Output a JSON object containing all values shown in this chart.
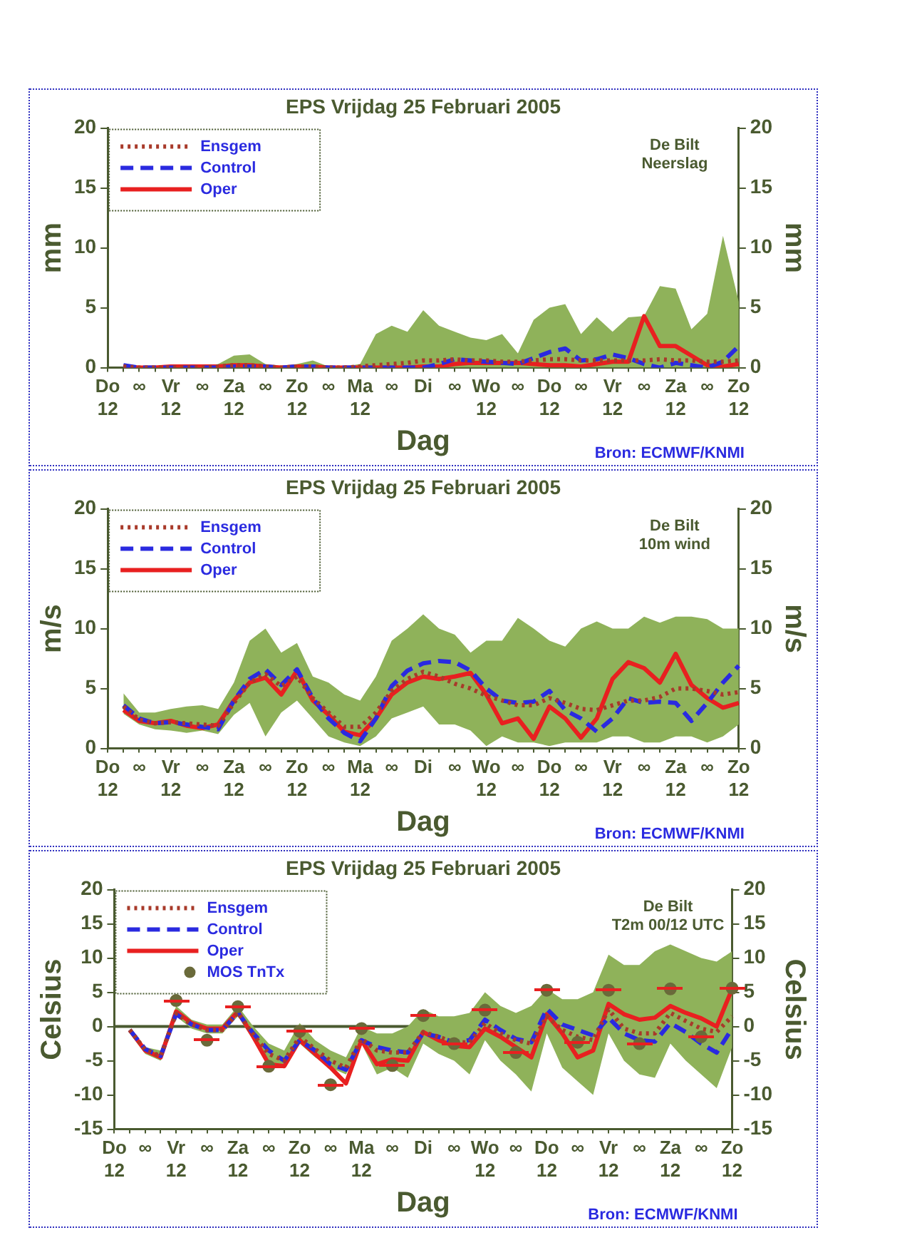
{
  "chart_data": [
    {
      "type": "line",
      "title": "EPS Vrijdag 25 Februari 2005",
      "xlabel": "Dag",
      "ylabel": "mm",
      "y2label": "mm",
      "legend": "top left",
      "grid": false,
      "annotations": [
        "De Bilt",
        "Neerslag",
        "Bron: ECMWF/KNMI"
      ],
      "categories": [
        "Do\n12",
        null,
        "∞",
        null,
        "Vr\n12",
        null,
        "∞",
        null,
        "Za\n12",
        null,
        "∞",
        null,
        "Zo\n12",
        null,
        "∞",
        null,
        "Ma\n12",
        null,
        "∞",
        null,
        "Di",
        null,
        "∞",
        null,
        "Wo\n12",
        null,
        "∞",
        null,
        "Do\n12",
        null,
        "∞",
        null,
        "Vr\n12",
        null,
        "∞",
        null,
        "Za\n12",
        null,
        "∞",
        null,
        "Zo\n12"
      ],
      "ylim": [
        0,
        20
      ],
      "yticks": [
        0,
        5,
        10,
        15,
        20
      ],
      "y2lim": [
        0,
        20
      ],
      "y2ticks": [
        0,
        5,
        10,
        15,
        20
      ],
      "series": [
        {
          "name": "Ensgem",
          "color": "#a83a2a",
          "line_style": "dotted",
          "values": [
            null,
            0.1,
            0,
            0,
            0,
            0,
            0,
            0.1,
            0.2,
            0.2,
            0.1,
            0,
            0.1,
            0.1,
            0,
            0,
            0.1,
            0.2,
            0.3,
            0.4,
            0.6,
            0.6,
            0.7,
            0.6,
            0.6,
            0.5,
            0.5,
            0.6,
            0.7,
            0.7,
            0.6,
            0.6,
            0.6,
            0.6,
            0.6,
            0.7,
            0.6,
            0.6,
            0.5,
            0.5,
            0.6
          ],
          "lower": [
            null,
            0,
            0,
            0,
            0,
            0,
            0,
            0,
            0,
            0,
            0,
            0,
            0,
            0,
            0,
            0,
            0,
            0,
            0,
            0,
            0,
            0,
            0,
            0,
            0,
            0,
            0,
            0,
            0,
            0,
            0,
            0,
            0,
            0,
            0,
            0,
            0,
            0,
            0,
            0,
            0
          ],
          "upper": [
            null,
            0.2,
            0.1,
            0.1,
            0.1,
            0.1,
            0.1,
            0.3,
            1.0,
            1.1,
            0.3,
            0.1,
            0.3,
            0.6,
            0.1,
            0.1,
            0.3,
            2.8,
            3.5,
            3.0,
            4.8,
            3.5,
            3.0,
            2.5,
            2.3,
            2.8,
            1.2,
            4.0,
            5.0,
            5.3,
            2.8,
            4.2,
            3.0,
            4.2,
            4.3,
            6.8,
            6.6,
            3.2,
            4.5,
            11.0,
            5.5
          ]
        },
        {
          "name": "Control",
          "color": "#2a2ae0",
          "line_style": "dashed",
          "values": [
            null,
            0.2,
            0,
            0,
            0,
            0,
            0,
            0,
            0.1,
            0.1,
            0.1,
            0,
            0.1,
            0.1,
            0,
            0,
            0,
            0,
            0,
            0,
            0,
            0.3,
            0.7,
            0.6,
            0.5,
            0.4,
            0.3,
            0.8,
            1.3,
            1.6,
            0.6,
            0.7,
            1.1,
            0.8,
            0.3,
            0,
            0.4,
            0.2,
            0,
            0.5,
            1.8
          ]
        },
        {
          "name": "Oper",
          "color": "#e82020",
          "line_style": "solid",
          "values": [
            null,
            0.1,
            0,
            0,
            0.1,
            0.1,
            0.1,
            0.1,
            0.2,
            0.2,
            0.1,
            0,
            0.1,
            0.1,
            0,
            0,
            0,
            0,
            0,
            0,
            0.1,
            0.1,
            0.3,
            0.4,
            0.4,
            0.4,
            0.4,
            0.3,
            0.2,
            0.2,
            0.1,
            0.3,
            0.5,
            0.5,
            4.3,
            1.8,
            1.8,
            1.0,
            0.2,
            0.1,
            0.3
          ]
        }
      ]
    },
    {
      "type": "line",
      "title": "EPS Vrijdag 25 Februari 2005",
      "xlabel": "Dag",
      "ylabel": "m/s",
      "y2label": "m/s",
      "legend": "top left",
      "grid": false,
      "annotations": [
        "De Bilt",
        "10m wind",
        "Bron: ECMWF/KNMI"
      ],
      "categories": [
        "Do\n12",
        null,
        "∞",
        null,
        "Vr\n12",
        null,
        "∞",
        null,
        "Za\n12",
        null,
        "∞",
        null,
        "Zo\n12",
        null,
        "∞",
        null,
        "Ma\n12",
        null,
        "∞",
        null,
        "Di",
        null,
        "∞",
        null,
        "Wo\n12",
        null,
        "∞",
        null,
        "Do\n12",
        null,
        "∞",
        null,
        "Vr\n12",
        null,
        "∞",
        null,
        "Za\n12",
        null,
        "∞",
        null,
        "Zo\n12"
      ],
      "ylim": [
        0,
        20
      ],
      "yticks": [
        0,
        5,
        10,
        15,
        20
      ],
      "y2lim": [
        0,
        20
      ],
      "y2ticks": [
        0,
        5,
        10,
        15,
        20
      ],
      "series": [
        {
          "name": "Ensgem",
          "color": "#a83a2a",
          "line_style": "dotted",
          "values": [
            null,
            3.5,
            2.4,
            2.1,
            2.2,
            2.1,
            2.0,
            1.9,
            3.8,
            5.5,
            6.2,
            5.2,
            6.0,
            4.2,
            3.0,
            1.8,
            1.8,
            3.0,
            4.8,
            5.8,
            6.4,
            6.0,
            5.4,
            5.0,
            4.4,
            4.0,
            3.6,
            3.6,
            4.2,
            3.8,
            3.3,
            3.2,
            3.6,
            4.0,
            4.0,
            4.3,
            5.0,
            5.0,
            4.8,
            4.5,
            4.7
          ],
          "lower": [
            null,
            2.9,
            2,
            1.6,
            1.5,
            1.3,
            1.5,
            1.2,
            2.8,
            3.8,
            1,
            3,
            4,
            2.5,
            1,
            0.5,
            0.2,
            1,
            2.5,
            3,
            3.5,
            2,
            2,
            1.5,
            0.2,
            1,
            0.5,
            0.5,
            0.2,
            0.5,
            0.5,
            0.5,
            1,
            1,
            0.5,
            0.5,
            1,
            1,
            0.5,
            1,
            2
          ],
          "upper": [
            null,
            4.6,
            3,
            3,
            3.3,
            3.5,
            3.6,
            3.3,
            5.5,
            9,
            10,
            8,
            8.8,
            6,
            5.5,
            4.5,
            4,
            6,
            9,
            10,
            11.2,
            10,
            9.5,
            8,
            9,
            9,
            10.9,
            10,
            9,
            8.5,
            10,
            10.6,
            10,
            10,
            11,
            10.5,
            11,
            11,
            10.8,
            10,
            10
          ]
        },
        {
          "name": "Control",
          "color": "#2a2ae0",
          "line_style": "dashed",
          "values": [
            null,
            3.6,
            2.5,
            2.1,
            2.2,
            2.0,
            1.8,
            1.6,
            4.0,
            5.8,
            6.6,
            5.3,
            6.6,
            4.2,
            2.5,
            1.3,
            0.6,
            2.5,
            5.2,
            6.5,
            7.1,
            7.3,
            7.2,
            6.5,
            5.0,
            4.0,
            3.8,
            3.9,
            4.8,
            3.2,
            2.5,
            1.4,
            2.5,
            4.2,
            3.8,
            3.9,
            3.8,
            2.3,
            3.8,
            5.5,
            6.9
          ]
        },
        {
          "name": "Oper",
          "color": "#e82020",
          "line_style": "solid",
          "values": [
            null,
            3.2,
            2.3,
            2.1,
            2.3,
            1.9,
            1.7,
            2.0,
            4.0,
            5.5,
            5.9,
            4.5,
            6.5,
            4.0,
            2.8,
            1.4,
            1.1,
            2.5,
            4.5,
            5.5,
            6.0,
            5.8,
            6.0,
            6.3,
            4.5,
            2.1,
            2.5,
            0.8,
            3.5,
            2.5,
            0.9,
            2.5,
            5.8,
            7.2,
            6.7,
            5.5,
            7.9,
            5.3,
            4.2,
            3.4,
            3.8
          ]
        }
      ]
    },
    {
      "type": "line",
      "title": "EPS Vrijdag 25 Februari 2005",
      "xlabel": "Dag",
      "ylabel": "Celsius",
      "y2label": "Celsius",
      "legend": "top left",
      "grid": false,
      "annotations": [
        "De Bilt",
        "T2m 00/12 UTC",
        "Bron: ECMWF/KNMI"
      ],
      "ref_lines": [
        {
          "axis": "y",
          "value": 0,
          "color": "#4a5a30"
        }
      ],
      "categories": [
        "Do\n12",
        null,
        "∞",
        null,
        "Vr\n12",
        null,
        "∞",
        null,
        "Za\n12",
        null,
        "∞",
        null,
        "Zo\n12",
        null,
        "∞",
        null,
        "Ma\n12",
        null,
        "∞",
        null,
        "Di",
        null,
        "∞",
        null,
        "Wo\n12",
        null,
        "∞",
        null,
        "Do\n12",
        null,
        "∞",
        null,
        "Vr\n12",
        null,
        "∞",
        null,
        "Za\n12",
        null,
        "∞",
        null,
        "Zo\n12"
      ],
      "ylim": [
        -15,
        20
      ],
      "yticks": [
        -15,
        -10,
        -5,
        0,
        5,
        10,
        15,
        20
      ],
      "y2lim": [
        -15,
        20
      ],
      "y2ticks": [
        -15,
        -10,
        -5,
        0,
        5,
        10,
        15,
        20
      ],
      "series": [
        {
          "name": "Ensgem",
          "color": "#a83a2a",
          "line_style": "dotted",
          "values": [
            null,
            -0.5,
            -3.4,
            -4.3,
            1.9,
            0.3,
            -0.5,
            -0.5,
            2.0,
            -1.2,
            -4.0,
            -5.0,
            -1.5,
            -3.3,
            -5.0,
            -6.0,
            -1.8,
            -3.5,
            -3.8,
            -3.8,
            -0.8,
            -1.5,
            -2.3,
            -2.3,
            0.5,
            -1.0,
            -2.0,
            -2.5,
            1.5,
            -0.5,
            -1.5,
            -2.0,
            2.5,
            -0.3,
            -1.0,
            -1.0,
            2.0,
            0.8,
            -0.3,
            -0.8,
            1.5
          ],
          "lower": [
            null,
            -1,
            -4,
            -5,
            1.5,
            -0.3,
            -1,
            -1,
            1.5,
            -2,
            -5.5,
            -6,
            -2.5,
            -4.5,
            -6,
            -7,
            -2.5,
            -7,
            -6,
            -7.5,
            -2.5,
            -4,
            -5,
            -7,
            -2,
            -5,
            -7,
            -9.5,
            -1,
            -6,
            -8,
            -10,
            -1,
            -5,
            -7,
            -7.5,
            -2.5,
            -5,
            -7,
            -9,
            -3
          ],
          "upper": [
            null,
            -0.3,
            -3,
            -3.5,
            3,
            1,
            0.3,
            0.3,
            3,
            0,
            -2.5,
            -3.5,
            0.5,
            -2,
            -3.5,
            -4.5,
            0,
            -1,
            -1,
            0,
            2.5,
            1.5,
            1.5,
            2,
            5,
            3,
            2,
            3,
            5.5,
            4,
            4,
            5,
            10.5,
            9,
            9,
            11,
            12,
            11,
            10,
            9.5,
            11
          ]
        },
        {
          "name": "Control",
          "color": "#2a2ae0",
          "line_style": "dashed",
          "values": [
            null,
            -0.5,
            -3.3,
            -4.3,
            1.8,
            0.3,
            -0.5,
            -0.5,
            2.0,
            -1.0,
            -3.5,
            -5.0,
            -2.0,
            -3.5,
            -5.5,
            -6.3,
            -2.0,
            -3.0,
            -3.5,
            -3.8,
            -1.0,
            -1.5,
            -2.3,
            -2.0,
            1.0,
            -0.5,
            -1.8,
            -2.3,
            2.6,
            0.3,
            -0.5,
            -1.3,
            1.3,
            -1.0,
            -2.0,
            -2.2,
            0.5,
            -0.8,
            -2.5,
            -3.8,
            -0.3
          ]
        },
        {
          "name": "Oper",
          "color": "#e82020",
          "line_style": "solid",
          "values": [
            null,
            -0.5,
            -3.5,
            -4.5,
            2.2,
            0.5,
            -0.3,
            -0.3,
            2.2,
            -1.5,
            -5.5,
            -5.8,
            -2.0,
            -4.0,
            -6.0,
            -8.3,
            -2.0,
            -5.5,
            -4.8,
            -5.0,
            -0.8,
            -2.0,
            -2.8,
            -3.0,
            -0.3,
            -1.5,
            -3.0,
            -4.5,
            1.8,
            -1.0,
            -4.5,
            -3.5,
            3.3,
            1.8,
            1.0,
            1.3,
            3.0,
            2.0,
            1.2,
            0.0,
            5.5
          ]
        },
        {
          "name": "MOS TnTx",
          "type": "scatter",
          "marker": "circle",
          "color": "#6a6a3a",
          "values": [
            null,
            null,
            null,
            null,
            3.8,
            null,
            -2.0,
            null,
            2.9,
            null,
            -5.8,
            null,
            -0.7,
            null,
            -8.5,
            null,
            -0.3,
            null,
            -5.7,
            null,
            1.6,
            null,
            -2.5,
            null,
            2.4,
            null,
            -3.8,
            null,
            5.3,
            null,
            -2.3,
            null,
            5.3,
            null,
            -2.5,
            null,
            5.5,
            null,
            -1.5,
            null,
            5.6
          ]
        }
      ]
    }
  ]
}
